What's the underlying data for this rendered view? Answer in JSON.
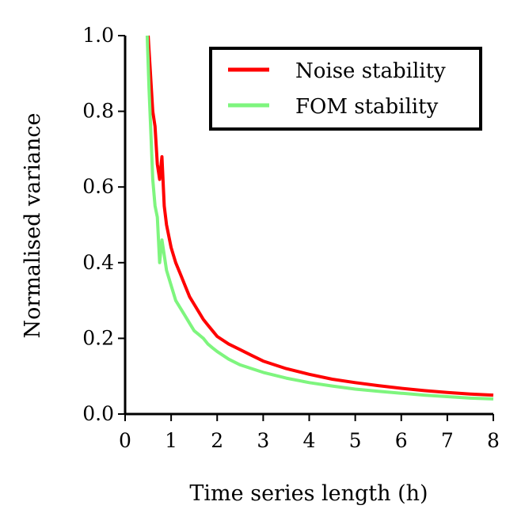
{
  "chart_data": {
    "type": "line",
    "title": "",
    "xlabel": "Time series length (h)",
    "ylabel": "Normalised variance",
    "xlim": [
      0,
      8
    ],
    "ylim": [
      0.0,
      1.0
    ],
    "xticks": [
      "0",
      "1",
      "2",
      "3",
      "4",
      "5",
      "6",
      "7",
      "8"
    ],
    "yticks": [
      "0.0",
      "0.2",
      "0.4",
      "0.6",
      "0.8",
      "1.0"
    ],
    "grid": false,
    "legend_position": "top-right",
    "series": [
      {
        "name": "Noise stability",
        "color": "#ff0000",
        "x": [
          0.5,
          0.55,
          0.6,
          0.65,
          0.7,
          0.75,
          0.8,
          0.85,
          0.9,
          1.0,
          1.1,
          1.2,
          1.3,
          1.4,
          1.5,
          1.6,
          1.7,
          1.8,
          1.9,
          2.0,
          2.25,
          2.5,
          2.75,
          3.0,
          3.5,
          4.0,
          4.5,
          5.0,
          5.5,
          6.0,
          6.5,
          7.0,
          7.5,
          8.0
        ],
        "values": [
          1.0,
          0.9,
          0.8,
          0.76,
          0.66,
          0.62,
          0.68,
          0.55,
          0.5,
          0.44,
          0.4,
          0.37,
          0.34,
          0.31,
          0.29,
          0.27,
          0.25,
          0.235,
          0.22,
          0.205,
          0.185,
          0.17,
          0.155,
          0.14,
          0.12,
          0.105,
          0.092,
          0.083,
          0.075,
          0.068,
          0.062,
          0.057,
          0.053,
          0.05
        ]
      },
      {
        "name": "FOM stability",
        "color": "#7ef57e",
        "x": [
          0.48,
          0.52,
          0.56,
          0.6,
          0.65,
          0.7,
          0.75,
          0.8,
          0.85,
          0.9,
          1.0,
          1.1,
          1.2,
          1.3,
          1.4,
          1.5,
          1.6,
          1.7,
          1.8,
          1.9,
          2.0,
          2.25,
          2.5,
          2.75,
          3.0,
          3.5,
          4.0,
          4.5,
          5.0,
          5.5,
          6.0,
          6.5,
          7.0,
          7.5,
          8.0
        ],
        "values": [
          1.0,
          0.86,
          0.74,
          0.62,
          0.55,
          0.52,
          0.4,
          0.46,
          0.42,
          0.38,
          0.34,
          0.3,
          0.28,
          0.26,
          0.24,
          0.22,
          0.21,
          0.2,
          0.185,
          0.175,
          0.165,
          0.145,
          0.13,
          0.12,
          0.11,
          0.095,
          0.083,
          0.074,
          0.066,
          0.06,
          0.055,
          0.05,
          0.046,
          0.042,
          0.04
        ]
      }
    ]
  }
}
